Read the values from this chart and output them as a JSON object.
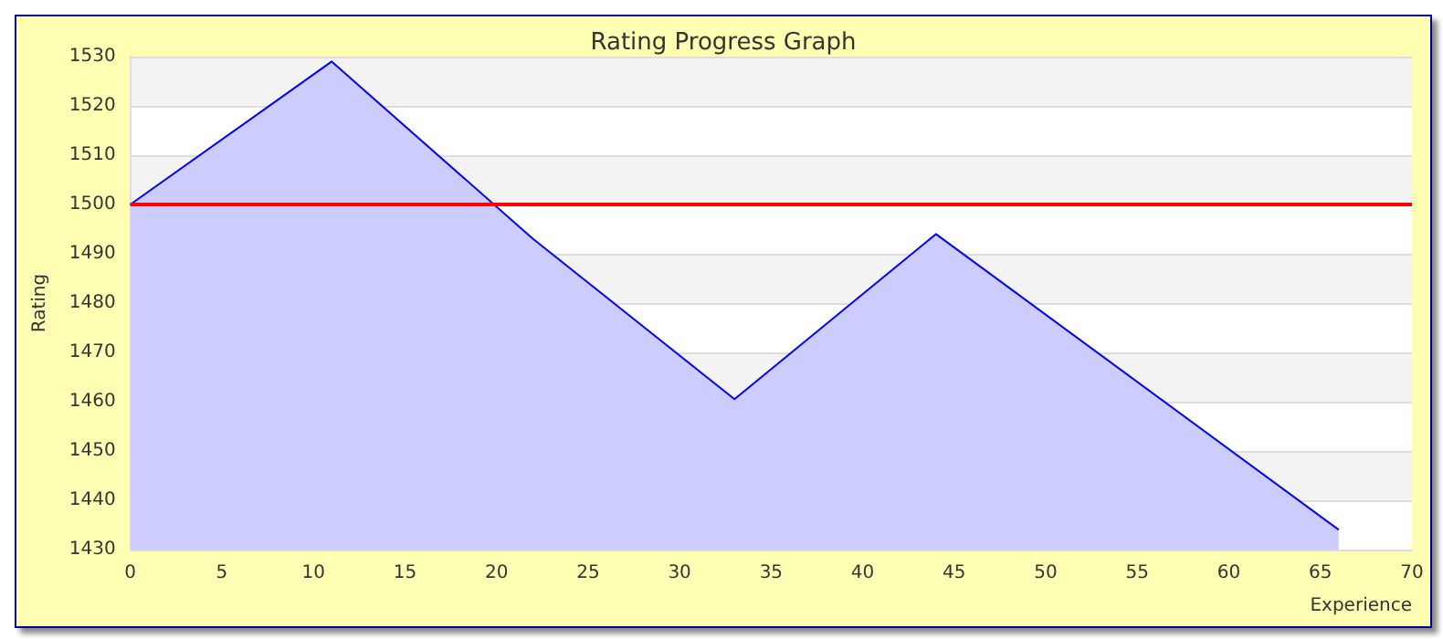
{
  "chart_data": {
    "type": "area",
    "title": "Rating Progress Graph",
    "xlabel": "Experience",
    "ylabel": "Rating",
    "x": [
      0,
      11,
      22,
      33,
      44,
      66
    ],
    "series": [
      {
        "color": "#0000ff",
        "values": [
          1500,
          1529,
          1493,
          1460.5,
          1494,
          1434
        ]
      }
    ],
    "xlim": [
      0,
      70
    ],
    "xticks": [
      0,
      5,
      10,
      15,
      20,
      25,
      30,
      35,
      40,
      45,
      50,
      55,
      60,
      65,
      70
    ],
    "ylim": [
      1430,
      1530
    ],
    "yticks": [
      1430,
      1440,
      1450,
      1460,
      1470,
      1480,
      1490,
      1500,
      1510,
      1520,
      1530
    ],
    "ref_lines": [
      {
        "axis": "y",
        "value": 1500,
        "color": "#ff0000"
      }
    ],
    "grid": "y",
    "marker": "none",
    "line_style": "solid"
  }
}
